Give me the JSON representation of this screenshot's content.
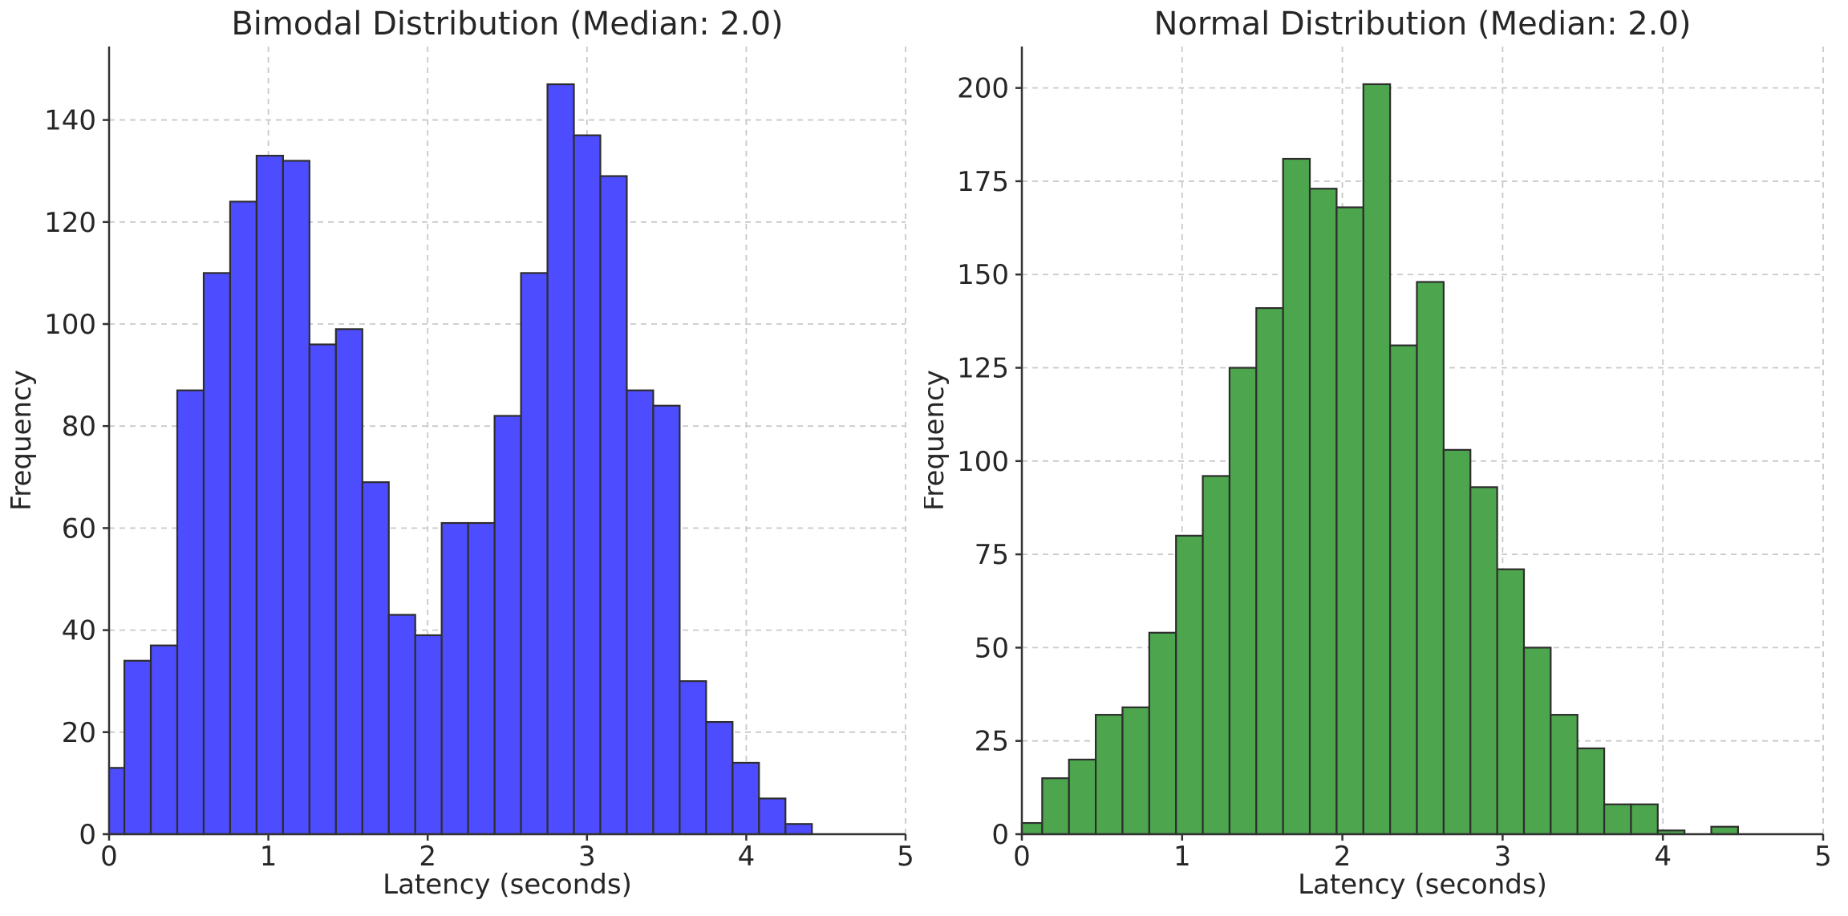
{
  "figure": {
    "background": "#ffffff",
    "text_color": "#262626",
    "spine_color": "#333333",
    "grid_color": "#c9c9c9"
  },
  "chart_data": [
    {
      "type": "bar",
      "title": "Bimodal Distribution (Median: 2.0)",
      "xlabel": "Latency (seconds)",
      "ylabel": "Frequency",
      "bar_color": "#4d4dff",
      "bar_edge_color": "#2d2d2d",
      "bin_start": -0.07,
      "bin_width": 0.166,
      "values": [
        13,
        34,
        37,
        87,
        110,
        124,
        133,
        132,
        96,
        99,
        69,
        43,
        39,
        61,
        61,
        82,
        110,
        147,
        137,
        129,
        87,
        84,
        30,
        22,
        14,
        7,
        2
      ],
      "xticks": [
        0,
        1,
        2,
        3,
        4,
        5
      ],
      "yticks": [
        0,
        20,
        40,
        60,
        80,
        100,
        120,
        140
      ],
      "xlim": [
        0,
        5
      ],
      "ylim": [
        0,
        154.4
      ],
      "grid": true,
      "legend": "none"
    },
    {
      "type": "bar",
      "title": "Normal Distribution (Median: 2.0)",
      "xlabel": "Latency (seconds)",
      "ylabel": "Frequency",
      "bar_color": "#4da64d",
      "bar_edge_color": "#2d2d2d",
      "bin_start": -0.04,
      "bin_width": 0.167,
      "values": [
        3,
        15,
        20,
        32,
        34,
        54,
        80,
        96,
        125,
        141,
        181,
        173,
        168,
        201,
        131,
        148,
        103,
        93,
        71,
        50,
        32,
        23,
        8,
        8,
        1,
        0,
        2
      ],
      "xticks": [
        0,
        1,
        2,
        3,
        4,
        5
      ],
      "yticks": [
        0,
        25,
        50,
        75,
        100,
        125,
        150,
        175,
        200
      ],
      "xlim": [
        0,
        5
      ],
      "ylim": [
        0,
        211.1
      ],
      "grid": true,
      "legend": "none"
    }
  ]
}
